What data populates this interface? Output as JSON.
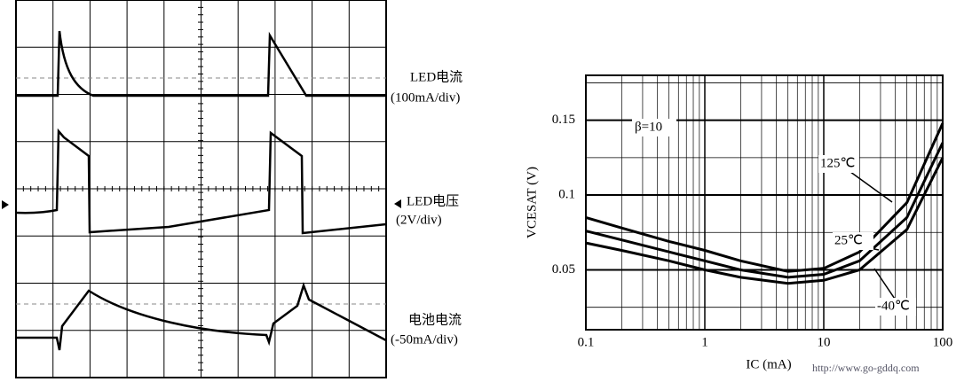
{
  "oscilloscope": {
    "traces": [
      {
        "name": "LED电流",
        "scale": "(100mA/div)"
      },
      {
        "name": "LED电压",
        "scale": "(2V/div)"
      },
      {
        "name": "电池电流",
        "scale": "(-50mA/div)"
      }
    ]
  },
  "watermark": "http://www.go-gddq.com",
  "chart_data": {
    "type": "line",
    "x_label": "IC (mA)",
    "y_label": "VCESAT (V)",
    "annotation": "β=10",
    "x": [
      0.1,
      0.2,
      0.5,
      1,
      2,
      5,
      10,
      20,
      50,
      100
    ],
    "series": [
      {
        "name": "125℃",
        "color": "#000000",
        "values": [
          0.085,
          0.078,
          0.069,
          0.063,
          0.056,
          0.049,
          0.051,
          0.062,
          0.095,
          0.148
        ]
      },
      {
        "name": "25℃",
        "color": "#000000",
        "values": [
          0.076,
          0.07,
          0.062,
          0.056,
          0.05,
          0.045,
          0.047,
          0.056,
          0.085,
          0.135
        ]
      },
      {
        "name": "-40℃",
        "color": "#000000",
        "values": [
          0.068,
          0.063,
          0.056,
          0.05,
          0.045,
          0.041,
          0.043,
          0.05,
          0.077,
          0.125
        ]
      }
    ],
    "xlog": true,
    "xlim": [
      0.1,
      100
    ],
    "xticks": [
      0.1,
      1,
      10,
      100
    ],
    "ylim": [
      0.01,
      0.18
    ],
    "yticks": [
      0.05,
      0.1,
      0.15
    ],
    "minor_yticks": [
      0.025,
      0.075,
      0.125,
      0.175
    ],
    "grid": true
  }
}
